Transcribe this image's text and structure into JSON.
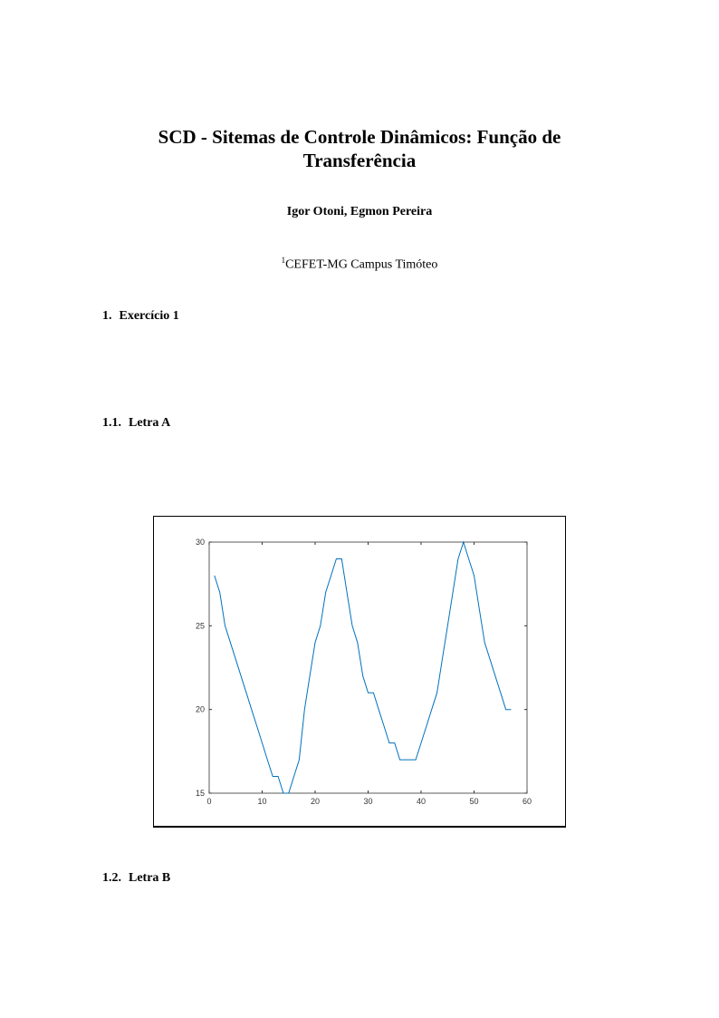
{
  "title_line1": "SCD - Sitemas de Controle Dinâmicos: Função de",
  "title_line2": "Transferência",
  "authors": "Igor Otoni, Egmon Pereira",
  "affiliation_mark": "1",
  "affiliation": "CEFET-MG Campus Timóteo",
  "sections": [
    {
      "number": "1.",
      "title": "Exercício 1"
    },
    {
      "number": "1.1.",
      "title": "Letra A"
    },
    {
      "number": "1.2.",
      "title": "Letra B"
    }
  ],
  "chart_data": {
    "type": "line",
    "title": "",
    "xlabel": "",
    "ylabel": "",
    "xlim": [
      0,
      60
    ],
    "ylim": [
      15,
      30
    ],
    "xticks": [
      0,
      10,
      20,
      30,
      40,
      50,
      60
    ],
    "yticks": [
      15,
      20,
      25,
      30
    ],
    "grid": false,
    "color": "#0072bd",
    "x": [
      1,
      2,
      3,
      4,
      5,
      6,
      7,
      8,
      9,
      10,
      11,
      12,
      13,
      14,
      15,
      16,
      17,
      18,
      19,
      20,
      21,
      22,
      23,
      24,
      25,
      26,
      27,
      28,
      29,
      30,
      31,
      32,
      33,
      34,
      35,
      36,
      37,
      38,
      39,
      40,
      41,
      42,
      43,
      44,
      45,
      46,
      47,
      48,
      49,
      50,
      51,
      52,
      53,
      54,
      55,
      56,
      57
    ],
    "y": [
      28,
      27,
      25,
      24,
      23,
      22,
      21,
      20,
      19,
      18,
      17,
      16,
      16,
      15,
      15,
      16,
      17,
      20,
      22,
      24,
      25,
      27,
      28,
      29,
      29,
      27,
      25,
      24,
      22,
      21,
      21,
      20,
      19,
      18,
      18,
      17,
      17,
      17,
      17,
      18,
      19,
      20,
      21,
      23,
      25,
      27,
      29,
      30,
      29,
      28,
      26,
      24,
      23,
      22,
      21,
      20,
      20
    ]
  }
}
